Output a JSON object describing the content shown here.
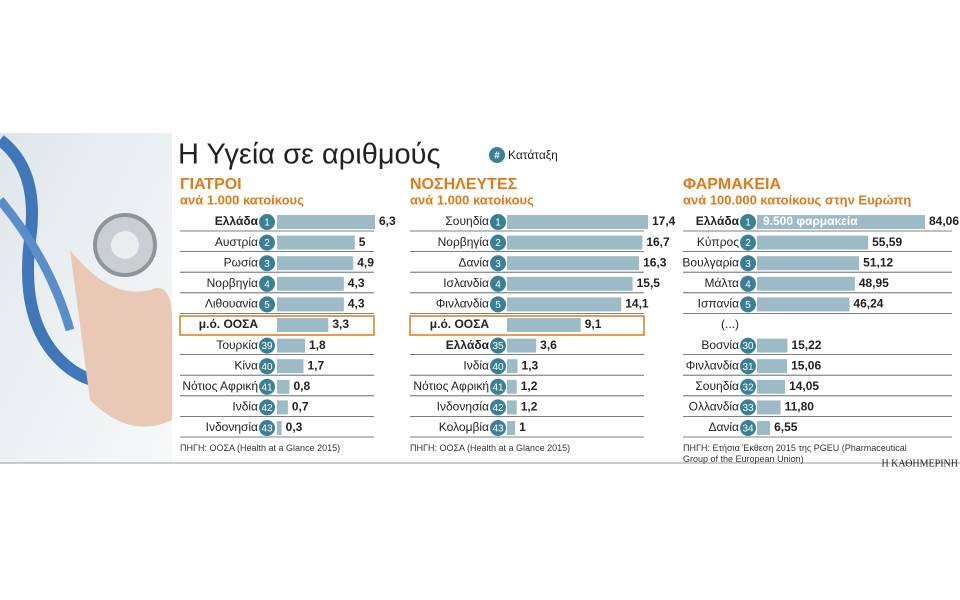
{
  "header": {
    "title": "Η Υγεία σε αριθμούς",
    "legend_symbol": "#",
    "legend": "Κατάταξη"
  },
  "chart_data": [
    {
      "type": "bar",
      "orientation": "horizontal",
      "title": "ΓΙΑΤΡΟΙ",
      "subtitle": "ανά 1.000 κατοίκους",
      "categories": [
        "Ελλάδα",
        "Αυστρία",
        "Ρωσία",
        "Νορβηγία",
        "Λιθουανία",
        "μ.ό. ΟΟΣΑ",
        "Τουρκία",
        "Κίνα",
        "Νότιος Αφρική",
        "Ινδία",
        "Ινδονησία"
      ],
      "ranks": [
        1,
        2,
        3,
        4,
        5,
        null,
        39,
        40,
        41,
        42,
        43
      ],
      "values": [
        6.3,
        5,
        4.9,
        4.3,
        4.3,
        3.3,
        1.8,
        1.7,
        0.8,
        0.7,
        0.3
      ],
      "value_labels": [
        "6,3",
        "5",
        "4,9",
        "4,3",
        "4,3",
        "3,3",
        "1,8",
        "1,7",
        "0,8",
        "0,7",
        "0,3"
      ],
      "color": "#9dbac7",
      "source": "ΠΗΓΗ: ΟΟΣΑ (Health at a Glance 2015)"
    },
    {
      "type": "bar",
      "orientation": "horizontal",
      "title": "ΝΟΣΗΛΕΥΤΕΣ",
      "subtitle": "ανά 1.000 κατοίκους",
      "categories": [
        "Σουηδία",
        "Νορβηγία",
        "Δανία",
        "Ισλανδία",
        "Φινλανδία",
        "μ.ό. ΟΟΣΑ",
        "Ελλάδα",
        "Ινδία",
        "Νότιος Αφρική",
        "Ινδονησία",
        "Κολομβία"
      ],
      "ranks": [
        1,
        2,
        3,
        4,
        5,
        null,
        35,
        40,
        41,
        42,
        43
      ],
      "values": [
        17.4,
        16.7,
        16.3,
        15.5,
        14.1,
        9.1,
        3.6,
        1.3,
        1.2,
        1.2,
        1
      ],
      "value_labels": [
        "17,4",
        "16,7",
        "16,3",
        "15,5",
        "14,1",
        "9,1",
        "3,6",
        "1,3",
        "1,2",
        "1,2",
        "1"
      ],
      "color": "#9dbac7",
      "source": "ΠΗΓΗ: ΟΟΣΑ (Health at a Glance 2015)"
    },
    {
      "type": "bar",
      "orientation": "horizontal",
      "title": "ΦΑΡΜΑΚΕΙΑ",
      "subtitle": "ανά 100.000 κατοίκους στην Ευρώπη",
      "categories": [
        "Ελλάδα",
        "Κύπρος",
        "Βουλγαρία",
        "Μάλτα",
        "Ισπανία",
        "(...)",
        "Βοσνία",
        "Φινλανδία",
        "Σουηδία",
        "Ολλανδία",
        "Δανία"
      ],
      "ranks": [
        1,
        2,
        3,
        4,
        5,
        null,
        30,
        31,
        32,
        33,
        34
      ],
      "values": [
        84.06,
        55.59,
        51.12,
        48.95,
        46.24,
        null,
        15.22,
        15.06,
        14.05,
        11.8,
        6.55
      ],
      "value_labels": [
        "84,06",
        "55,59",
        "51,12",
        "48,95",
        "46,24",
        null,
        "15,22",
        "15,06",
        "14,05",
        "11,80",
        "6,55"
      ],
      "annotation": "9.500 φαρμακεία",
      "color": "#9dbac7",
      "source": "ΠΗΓΗ: Ετήσια Έκθεση 2015 της PGEU (Pharmaceutical Group of the European Union)"
    }
  ],
  "footer": {
    "brand": "Η ΚΑΘΗΜΕΡΙΝΗ"
  }
}
